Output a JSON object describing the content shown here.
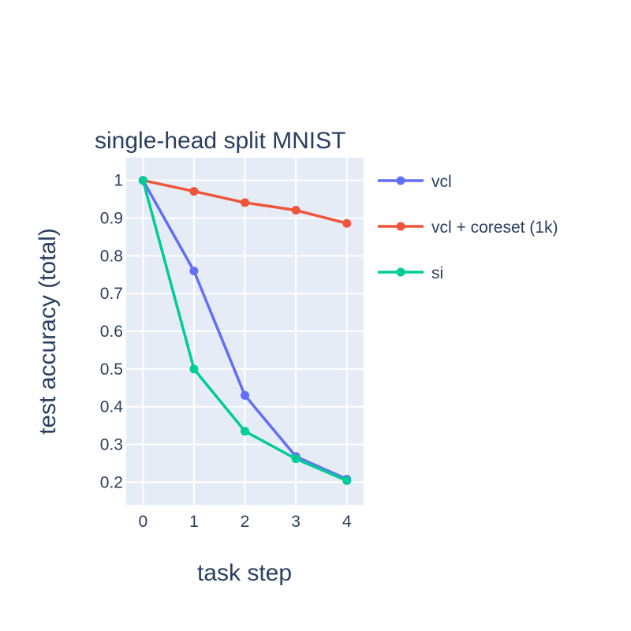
{
  "chart_data": {
    "type": "line",
    "title": "single-head split MNIST",
    "xlabel": "task step",
    "ylabel": "test accuracy (total)",
    "x": [
      0,
      1,
      2,
      3,
      4
    ],
    "xlim": [
      -0.33,
      4.33
    ],
    "ylim": [
      0.14,
      1.06
    ],
    "xticks": [
      0,
      1,
      2,
      3,
      4
    ],
    "xtick_labels": [
      "0",
      "1",
      "2",
      "3",
      "4"
    ],
    "yticks": [
      0.2,
      0.3,
      0.4,
      0.5,
      0.6,
      0.7,
      0.8,
      0.9,
      1
    ],
    "ytick_labels": [
      "0.2",
      "0.3",
      "0.4",
      "0.5",
      "0.6",
      "0.7",
      "0.8",
      "0.9",
      "1"
    ],
    "grid": true,
    "legend_position": "right",
    "plot_background": "#e5ecf6",
    "series": [
      {
        "name": "vcl",
        "color": "#636efa",
        "values": [
          1.0,
          0.76,
          0.43,
          0.268,
          0.208
        ]
      },
      {
        "name": "vcl + coreset (1k)",
        "color": "#ef553b",
        "values": [
          1.0,
          0.971,
          0.941,
          0.921,
          0.886
        ]
      },
      {
        "name": "si",
        "color": "#00cc96",
        "values": [
          1.0,
          0.5,
          0.335,
          0.262,
          0.204
        ]
      }
    ]
  }
}
